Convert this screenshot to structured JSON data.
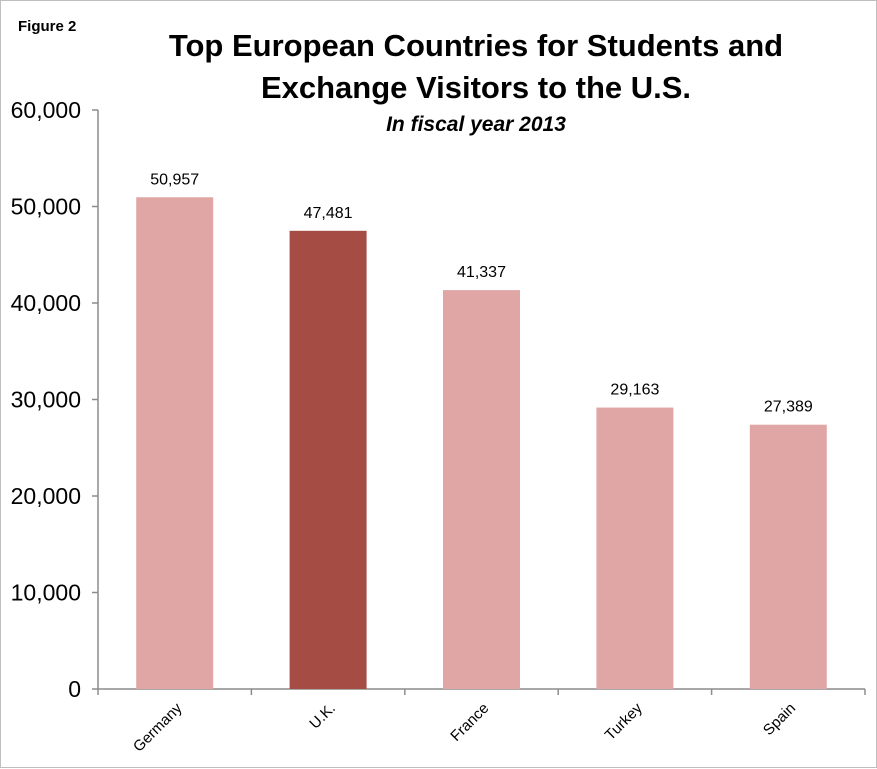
{
  "figure_label": "Figure 2",
  "chart_data": {
    "type": "bar",
    "title": "Top European Countries for Students and\nExchange Visitors to the U.S.",
    "subtitle": "In fiscal year 2013",
    "categories": [
      "Germany",
      "U.K.",
      "France",
      "Turkey",
      "Spain"
    ],
    "values": [
      50957,
      47481,
      41337,
      29163,
      27389
    ],
    "data_labels": [
      "50,957",
      "47,481",
      "41,337",
      "29,163",
      "27,389"
    ],
    "ylim": [
      0,
      60000
    ],
    "yticks": [
      0,
      10000,
      20000,
      30000,
      40000,
      50000,
      60000
    ],
    "ytick_labels": [
      "0",
      "10,000",
      "20,000",
      "30,000",
      "40,000",
      "50,000",
      "60,000"
    ],
    "grid": false,
    "legend": "none",
    "colors": {
      "default_bar": "#e0a6a5",
      "highlight_bar": "#a54c45",
      "axis": "#8c8c8c"
    },
    "highlight_category": "U.K."
  }
}
